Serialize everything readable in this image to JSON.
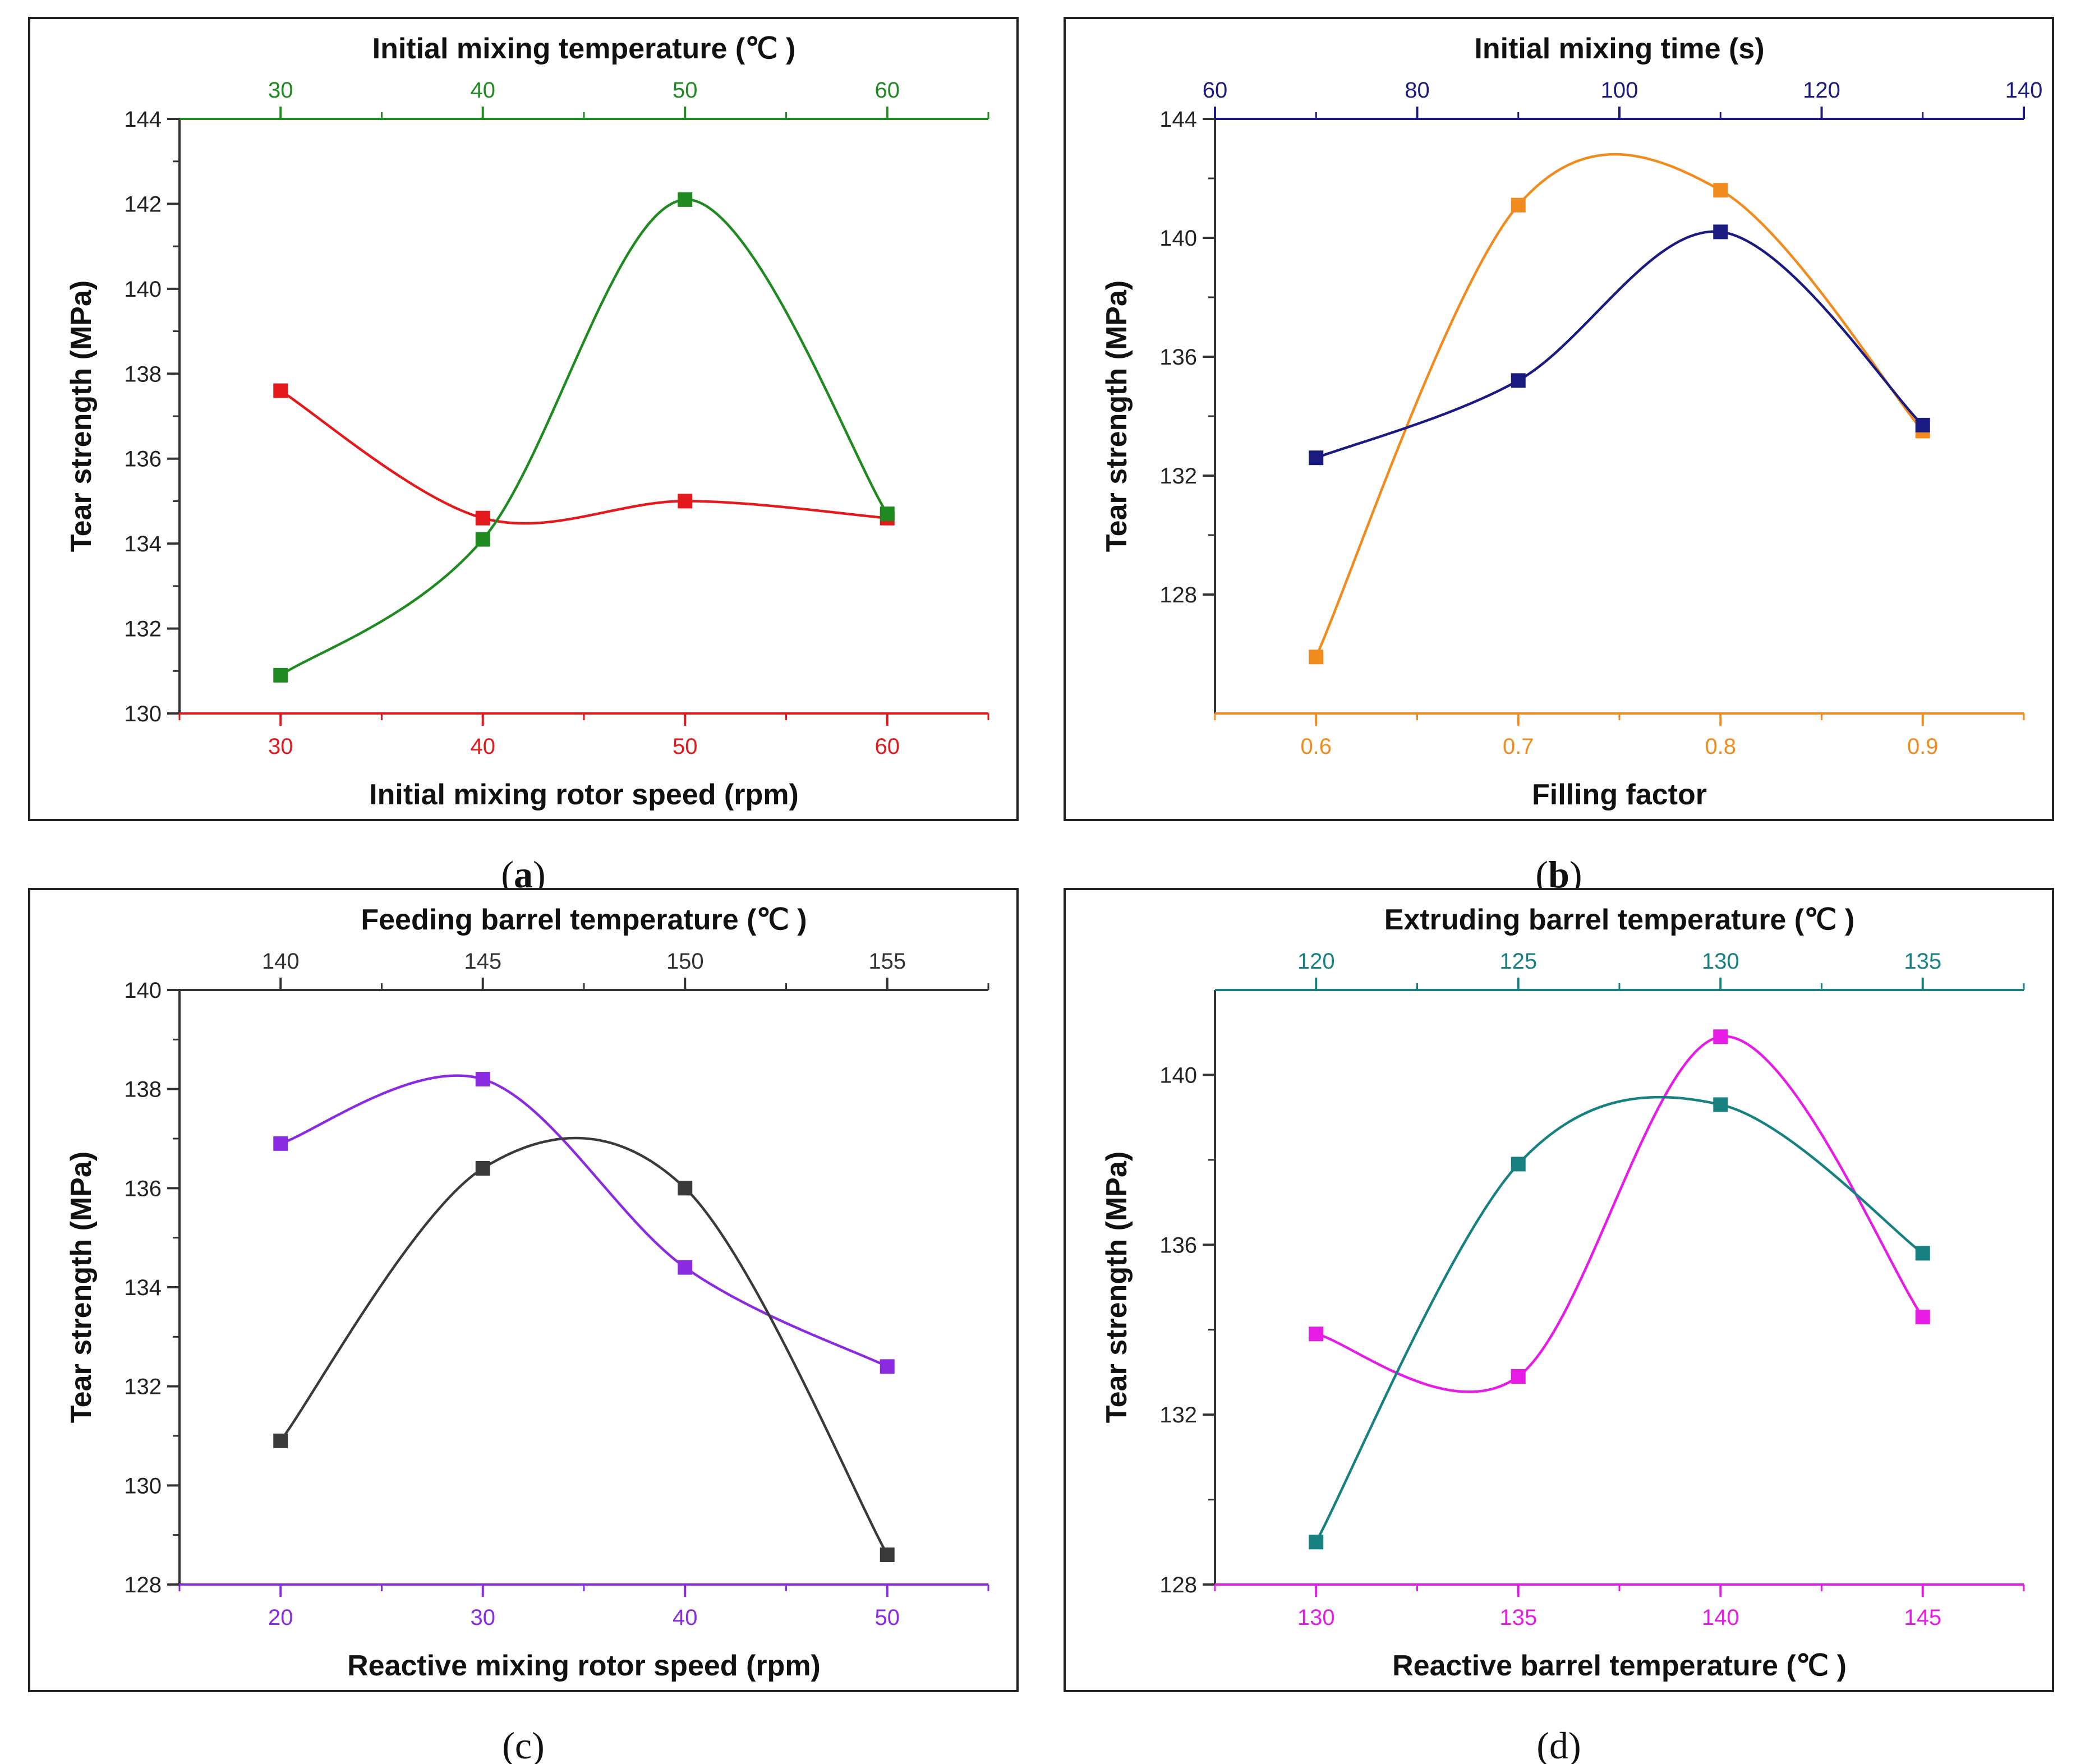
{
  "chart_data": [
    {
      "type": "line",
      "panel": "a",
      "caption_open": "(",
      "caption_letter": "a",
      "caption_close": ")",
      "caption_letter_bold": true,
      "ylabel": "Tear strength (MPa)",
      "ylim": [
        130,
        144
      ],
      "yticks": [
        130,
        132,
        134,
        136,
        138,
        140,
        142,
        144
      ],
      "bottom_axis": {
        "label": "Initial mixing rotor speed (rpm)",
        "color": "#e3191c",
        "range": [
          25,
          65
        ],
        "ticks": [
          30,
          40,
          50,
          60
        ],
        "tick_labels": [
          "30",
          "40",
          "50",
          "60"
        ]
      },
      "top_axis": {
        "label": "Initial mixing temperature (℃ )",
        "color": "#1f8a1f",
        "range": [
          25,
          65
        ],
        "ticks": [
          30,
          40,
          50,
          60
        ],
        "tick_labels": [
          "30",
          "40",
          "50",
          "60"
        ]
      },
      "series": [
        {
          "name": "Initial mixing rotor speed",
          "axis": "bottom",
          "color": "#e3191c",
          "x": [
            30,
            40,
            50,
            60
          ],
          "values": [
            137.6,
            134.6,
            135.0,
            134.6
          ]
        },
        {
          "name": "Initial mixing temperature",
          "axis": "top",
          "color": "#1f8a1f",
          "x": [
            30,
            40,
            50,
            60
          ],
          "values": [
            130.9,
            134.1,
            142.1,
            134.7
          ]
        }
      ]
    },
    {
      "type": "line",
      "panel": "b",
      "caption_open": "(",
      "caption_letter": "b",
      "caption_close": ")",
      "caption_letter_bold": true,
      "ylabel": "Tear strength (MPa)",
      "ylim": [
        124.0,
        144
      ],
      "yticks": [
        128,
        132,
        136,
        140,
        144
      ],
      "bottom_axis": {
        "label": "Filling factor",
        "color": "#f28b1e",
        "range": [
          0.55,
          0.95
        ],
        "ticks": [
          0.6,
          0.7,
          0.8,
          0.9
        ],
        "tick_labels": [
          "0.6",
          "0.7",
          "0.8",
          "0.9"
        ]
      },
      "top_axis": {
        "label": "Initial mixing time (s)",
        "color": "#1a1a80",
        "range": [
          60,
          140
        ],
        "ticks": [
          60,
          80,
          100,
          120,
          140
        ],
        "tick_labels": [
          "60",
          "80",
          "100",
          "120",
          "140"
        ]
      },
      "series": [
        {
          "name": "Filling factor",
          "axis": "bottom",
          "color": "#f28b1e",
          "x": [
            0.6,
            0.7,
            0.8,
            0.9
          ],
          "values": [
            125.9,
            141.1,
            141.6,
            133.5
          ]
        },
        {
          "name": "Initial mixing time",
          "axis": "top",
          "color": "#1a1a80",
          "x": [
            70,
            90,
            110,
            130
          ],
          "values": [
            132.6,
            135.2,
            140.2,
            133.7
          ]
        }
      ]
    },
    {
      "type": "line",
      "panel": "c",
      "caption_open": "(",
      "caption_letter": "c",
      "caption_close": ")",
      "caption_letter_bold": false,
      "ylabel": "Tear strength (MPa)",
      "ylim": [
        128,
        140
      ],
      "yticks": [
        128,
        130,
        132,
        134,
        136,
        138,
        140
      ],
      "bottom_axis": {
        "label": "Reactive mixing rotor speed (rpm)",
        "color": "#8a2be2",
        "range": [
          15,
          55
        ],
        "ticks": [
          20,
          30,
          40,
          50
        ],
        "tick_labels": [
          "20",
          "30",
          "40",
          "50"
        ]
      },
      "top_axis": {
        "label": "Feeding barrel temperature (℃ )",
        "color": "#333333",
        "range": [
          137.5,
          157.5
        ],
        "ticks": [
          140,
          145,
          150,
          155
        ],
        "tick_labels": [
          "140",
          "145",
          "150",
          "155"
        ]
      },
      "series": [
        {
          "name": "Reactive mixing rotor speed",
          "axis": "bottom",
          "color": "#8a2be2",
          "x": [
            20,
            30,
            40,
            50
          ],
          "values": [
            136.9,
            138.2,
            134.4,
            132.4
          ]
        },
        {
          "name": "Feeding barrel temperature",
          "axis": "top",
          "color": "#3a3a3a",
          "x": [
            140,
            145,
            150,
            155
          ],
          "values": [
            130.9,
            136.4,
            136.0,
            128.6
          ]
        }
      ]
    },
    {
      "type": "line",
      "panel": "d",
      "caption_open": "(",
      "caption_letter": "d",
      "caption_close": ")",
      "caption_letter_bold": false,
      "ylabel": "Tear strength (MPa)",
      "ylim": [
        128,
        142
      ],
      "yticks": [
        128,
        132,
        136,
        140
      ],
      "bottom_axis": {
        "label": "Reactive barrel temperature (℃ )",
        "color": "#e61ce6",
        "range": [
          127.5,
          147.5
        ],
        "ticks": [
          130,
          135,
          140,
          145
        ],
        "tick_labels": [
          "130",
          "135",
          "140",
          "145"
        ]
      },
      "top_axis": {
        "label": "Extruding barrel temperature (℃ )",
        "color": "#178080",
        "range": [
          117.5,
          137.5
        ],
        "ticks": [
          120,
          125,
          130,
          135
        ],
        "tick_labels": [
          "120",
          "125",
          "130",
          "135"
        ]
      },
      "series": [
        {
          "name": "Reactive barrel temperature",
          "axis": "bottom",
          "color": "#e61ce6",
          "x": [
            130,
            135,
            140,
            145
          ],
          "values": [
            133.9,
            132.9,
            140.9,
            134.3
          ]
        },
        {
          "name": "Extruding barrel temperature",
          "axis": "top",
          "color": "#178080",
          "x": [
            120,
            125,
            130,
            135
          ],
          "values": [
            129.0,
            137.9,
            139.3,
            135.8
          ]
        }
      ]
    }
  ]
}
